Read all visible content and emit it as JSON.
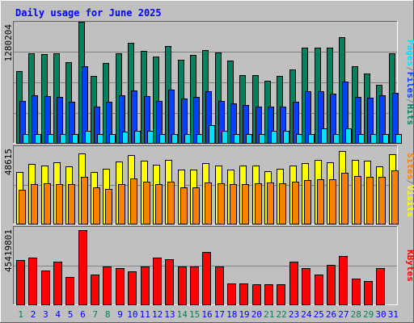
{
  "colors": {
    "background": "#c0c0c0",
    "title": "#0000ff",
    "hits": "#00805c",
    "files": "#0040ff",
    "pages": "#00e0ff",
    "visits": "#ffff00",
    "sites": "#ff8000",
    "kbytes": "#ff0000",
    "weekday_label": "#0000ff",
    "weekend_label": "#00805c"
  },
  "chart_data": {
    "type": "bar",
    "title": "Daily usage for June 2025",
    "days": [
      "1",
      "2",
      "3",
      "4",
      "5",
      "6",
      "7",
      "8",
      "9",
      "10",
      "11",
      "12",
      "13",
      "14",
      "15",
      "16",
      "17",
      "18",
      "19",
      "20",
      "21",
      "22",
      "23",
      "24",
      "25",
      "26",
      "27",
      "28",
      "29",
      "30",
      "31"
    ],
    "weekend_days": [
      "1",
      "7",
      "8",
      "14",
      "15",
      "21",
      "22",
      "28",
      "29"
    ],
    "panels": [
      {
        "id": "hits-files-pages",
        "ymax_label": "1280204",
        "ymax": 1280204,
        "legend": [
          {
            "text": "Pages",
            "color": "#00e0ff"
          },
          {
            "text": "/",
            "color": "#808080"
          },
          {
            "text": "Files",
            "color": "#0040ff"
          },
          {
            "text": "/",
            "color": "#808080"
          },
          {
            "text": "Hits",
            "color": "#00805c"
          }
        ],
        "series": [
          {
            "name": "Hits",
            "color": "#00805c",
            "values": [
              777000,
              972000,
              963000,
              972000,
              874000,
              1311000,
              726000,
              865000,
              972000,
              1087000,
              1002000,
              937000,
              1053000,
              900000,
              960000,
              1010000,
              982000,
              894000,
              738000,
              738000,
              678000,
              726000,
              798000,
              1033000,
              1035000,
              1036000,
              1147000,
              835000,
              753000,
              630000,
              977000
            ]
          },
          {
            "name": "Files",
            "color": "#0040ff",
            "values": [
              457000,
              520000,
              506000,
              497000,
              448000,
              832000,
              398000,
              448000,
              517000,
              566000,
              511000,
              457000,
              576000,
              481000,
              497000,
              560000,
              457000,
              428000,
              408000,
              398000,
              398000,
              398000,
              447000,
              561000,
              560000,
              537000,
              668000,
              496000,
              493000,
              514000,
              545000
            ]
          },
          {
            "name": "Pages",
            "color": "#00e0ff",
            "values": [
              98000,
              98000,
              98000,
              98000,
              98000,
              130000,
              98000,
              98000,
              126000,
              130000,
              130000,
              98000,
              98000,
              98000,
              98000,
              197000,
              130000,
              98000,
              98000,
              98000,
              130000,
              130000,
              98000,
              98000,
              160000,
              98000,
              160000,
              98000,
              98000,
              98000,
              98000
            ]
          }
        ]
      },
      {
        "id": "visits-sites",
        "ymax_label": "48615",
        "ymax": 48615,
        "legend": [
          {
            "text": "Sites",
            "color": "#ff8000"
          },
          {
            "text": "/",
            "color": "#808080"
          },
          {
            "text": "Visits",
            "color": "#ffff00"
          }
        ],
        "series": [
          {
            "name": "Visits",
            "color": "#ffff00",
            "values": [
              33800,
              39300,
              38300,
              40000,
              37500,
              46000,
              34000,
              36000,
              40500,
              45000,
              41000,
              38700,
              42000,
              35200,
              35500,
              39800,
              38100,
              35500,
              38300,
              37800,
              34500,
              35800,
              38000,
              39800,
              42000,
              40200,
              47500,
              42000,
              41400,
              37400,
              45700
            ]
          },
          {
            "name": "Sites",
            "color": "#ff8000",
            "values": [
              22000,
              25900,
              26300,
              25900,
              25800,
              30800,
              23700,
              22600,
              25900,
              29800,
              27500,
              25900,
              27600,
              23700,
              23700,
              26900,
              26300,
              25800,
              25800,
              26300,
              26900,
              26300,
              27500,
              28700,
              29200,
              29200,
              33400,
              31300,
              30500,
              30500,
              35000
            ]
          }
        ]
      },
      {
        "id": "kbytes",
        "ymax_label": "45419801",
        "ymax": 45419801,
        "legend": [
          {
            "text": "KBytes",
            "color": "#ff0000"
          }
        ],
        "series": [
          {
            "name": "KBytes",
            "color": "#ff0000",
            "values": [
              27200000,
              28700000,
              20800000,
              26100000,
              16900000,
              45400000,
              18400000,
              23200000,
              22100000,
              20400000,
              23300000,
              28400000,
              27700000,
              23300000,
              23300000,
              31900000,
              23200000,
              13000000,
              13000000,
              12300000,
              12300000,
              12300000,
              26200000,
              22000000,
              18400000,
              24300000,
              29500000,
              16000000,
              14200000,
              22300000,
              null
            ]
          }
        ]
      }
    ]
  }
}
